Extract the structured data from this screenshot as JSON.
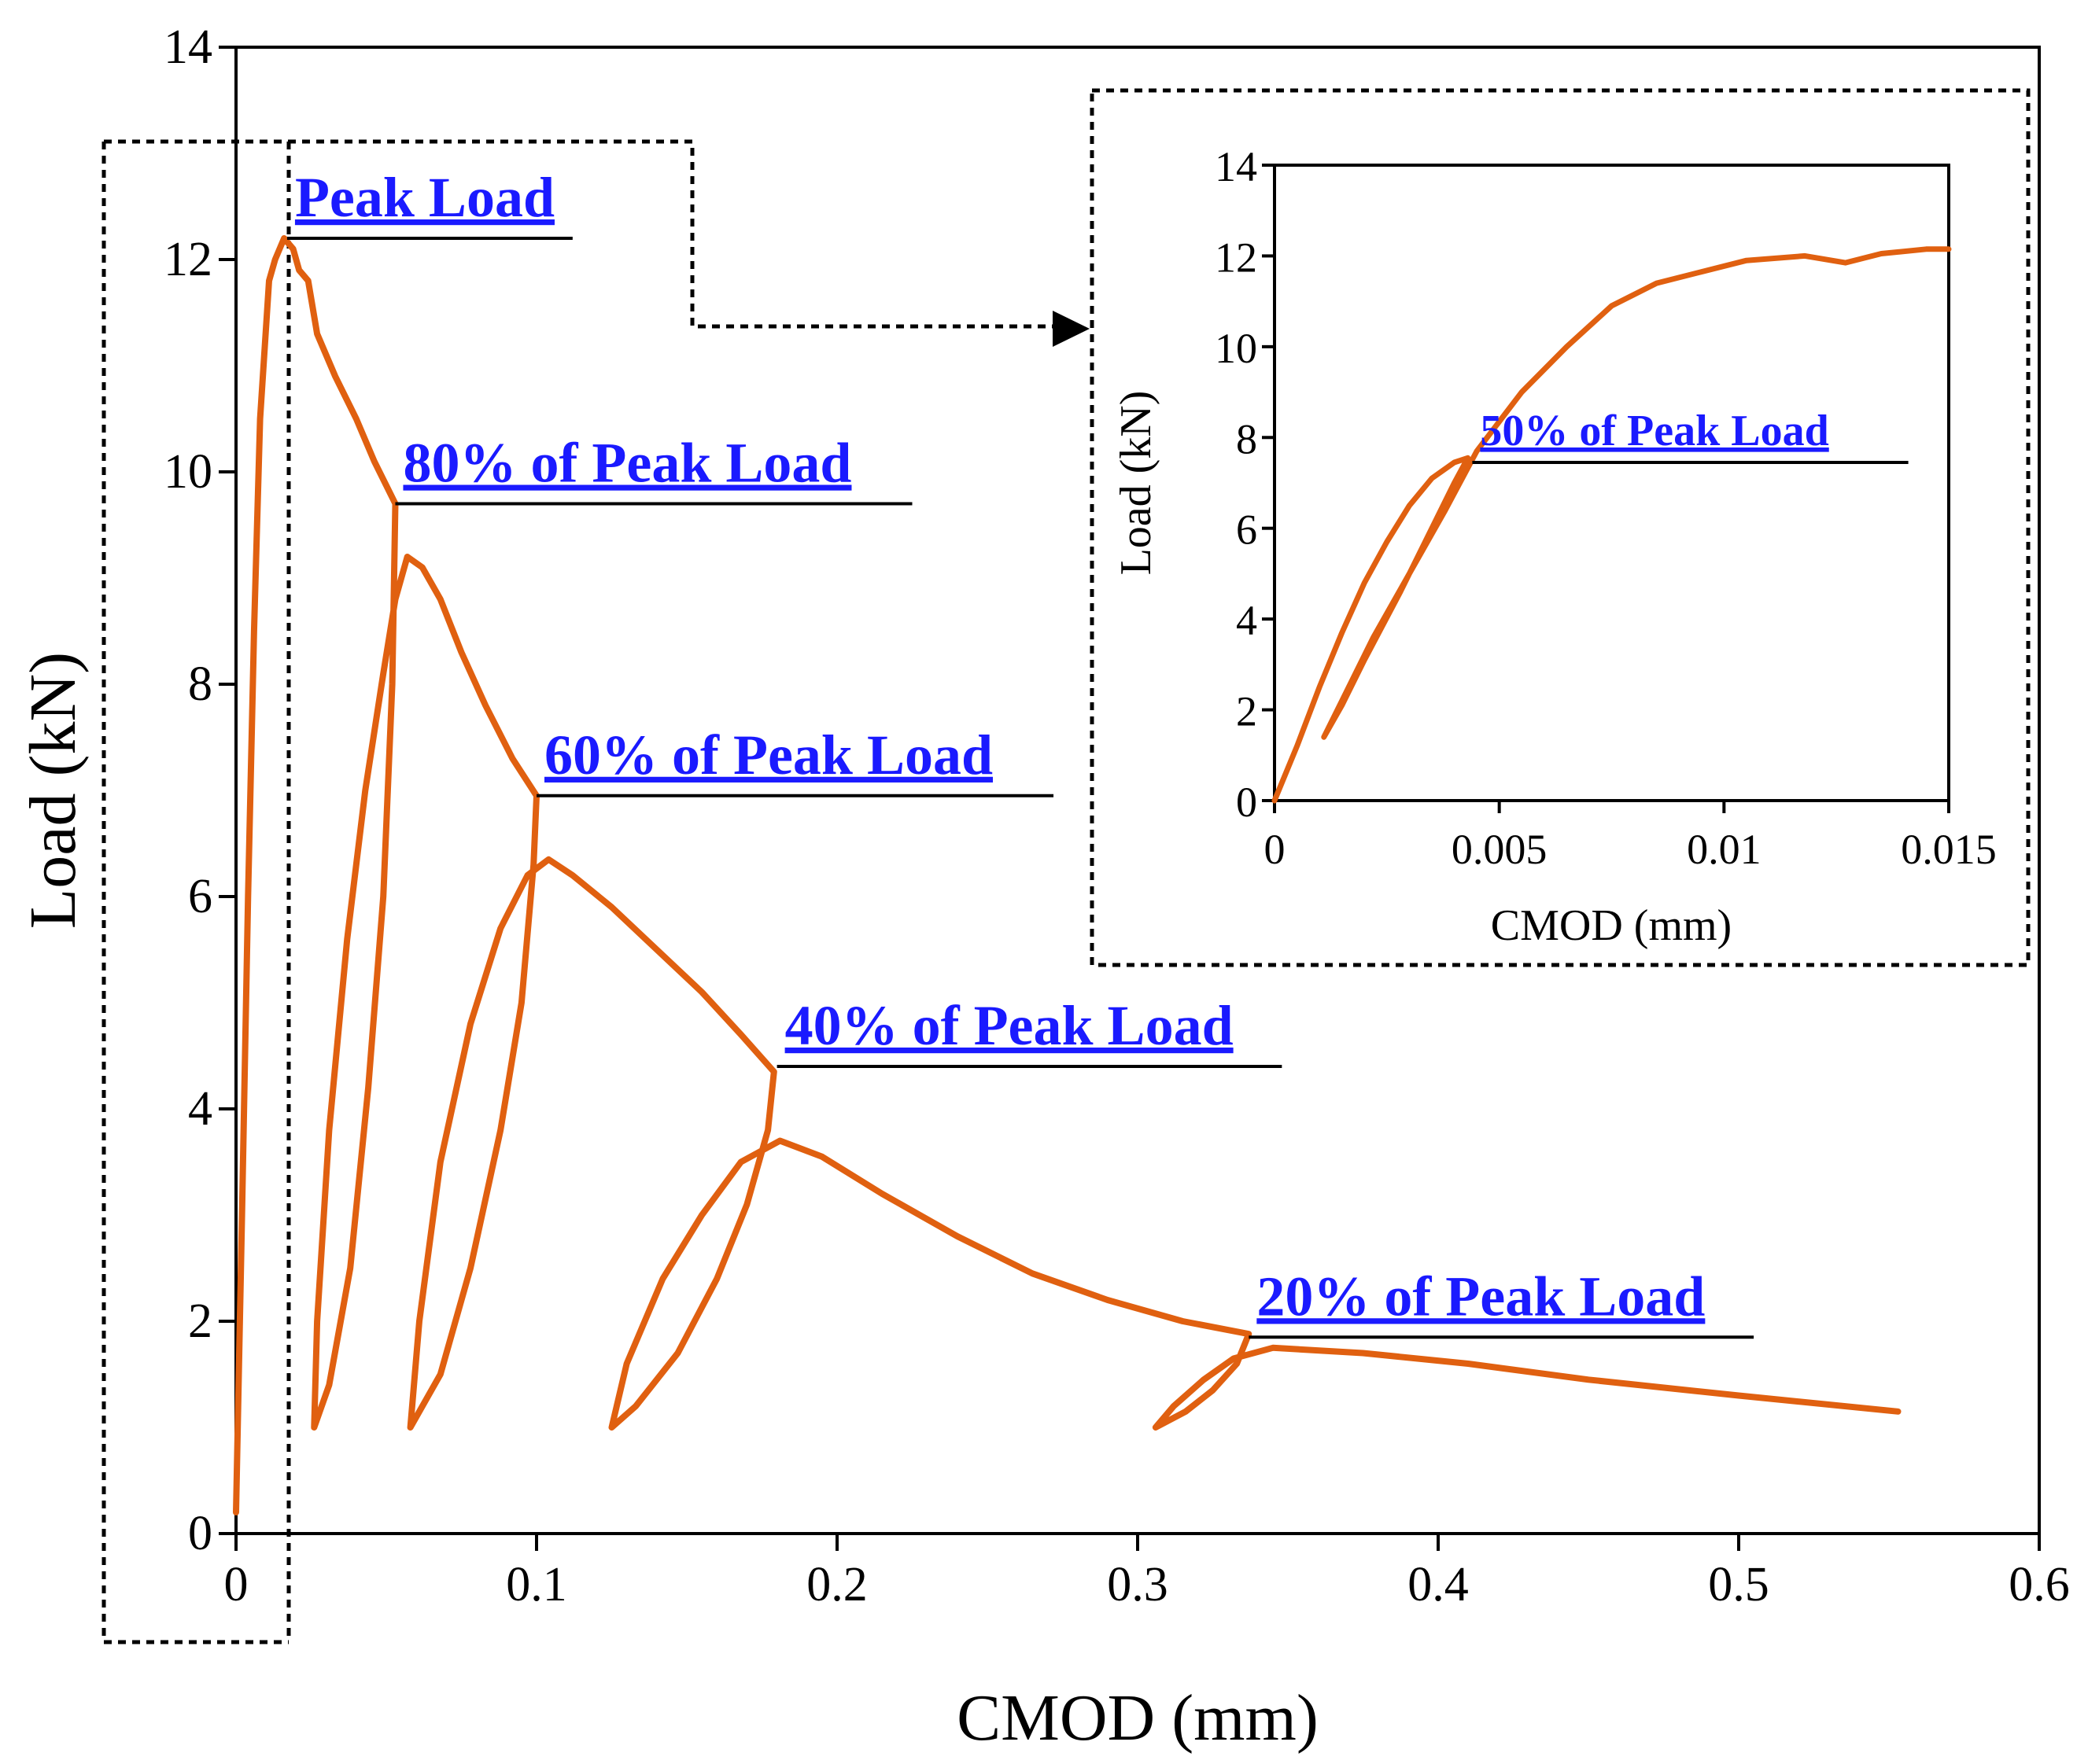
{
  "colors": {
    "curve": "#E06010",
    "annotation": "#1a1aff",
    "axis": "#000000"
  },
  "chart_data": [
    {
      "type": "line",
      "xlabel": "CMOD (mm)",
      "ylabel": "Load (kN)",
      "xlim": [
        0,
        0.6
      ],
      "ylim": [
        0,
        14
      ],
      "x_ticks": [
        "0",
        "0.1",
        "0.2",
        "0.3",
        "0.4",
        "0.5",
        "0.6"
      ],
      "y_ticks": [
        "0",
        "2",
        "4",
        "6",
        "8",
        "10",
        "12",
        "14"
      ],
      "grid": false,
      "series": [
        {
          "points": [
            [
              0.0,
              0.2
            ],
            [
              0.002,
              3.0
            ],
            [
              0.004,
              6.0
            ],
            [
              0.006,
              8.5
            ],
            [
              0.008,
              10.5
            ],
            [
              0.011,
              11.8
            ],
            [
              0.013,
              12.0
            ],
            [
              0.016,
              12.2
            ],
            [
              0.019,
              12.1
            ],
            [
              0.021,
              11.9
            ],
            [
              0.024,
              11.8
            ],
            [
              0.027,
              11.3
            ],
            [
              0.033,
              10.9
            ],
            [
              0.04,
              10.5
            ],
            [
              0.046,
              10.1
            ],
            [
              0.053,
              9.7
            ],
            [
              0.052,
              8.0
            ],
            [
              0.049,
              6.0
            ],
            [
              0.044,
              4.2
            ],
            [
              0.038,
              2.5
            ],
            [
              0.031,
              1.4
            ],
            [
              0.026,
              1.0
            ],
            [
              0.027,
              2.0
            ],
            [
              0.031,
              3.8
            ],
            [
              0.037,
              5.6
            ],
            [
              0.043,
              7.0
            ],
            [
              0.049,
              8.1
            ],
            [
              0.053,
              8.8
            ],
            [
              0.057,
              9.2
            ],
            [
              0.062,
              9.1
            ],
            [
              0.068,
              8.8
            ],
            [
              0.075,
              8.3
            ],
            [
              0.083,
              7.8
            ],
            [
              0.092,
              7.3
            ],
            [
              0.1,
              6.95
            ],
            [
              0.099,
              6.3
            ],
            [
              0.095,
              5.0
            ],
            [
              0.088,
              3.8
            ],
            [
              0.078,
              2.5
            ],
            [
              0.068,
              1.5
            ],
            [
              0.058,
              1.0
            ],
            [
              0.061,
              2.0
            ],
            [
              0.068,
              3.5
            ],
            [
              0.078,
              4.8
            ],
            [
              0.088,
              5.7
            ],
            [
              0.097,
              6.2
            ],
            [
              0.104,
              6.35
            ],
            [
              0.112,
              6.2
            ],
            [
              0.125,
              5.9
            ],
            [
              0.14,
              5.5
            ],
            [
              0.155,
              5.1
            ],
            [
              0.168,
              4.7
            ],
            [
              0.179,
              4.35
            ],
            [
              0.177,
              3.8
            ],
            [
              0.17,
              3.1
            ],
            [
              0.16,
              2.4
            ],
            [
              0.147,
              1.7
            ],
            [
              0.133,
              1.2
            ],
            [
              0.125,
              1.0
            ],
            [
              0.13,
              1.6
            ],
            [
              0.142,
              2.4
            ],
            [
              0.155,
              3.0
            ],
            [
              0.168,
              3.5
            ],
            [
              0.181,
              3.7
            ],
            [
              0.195,
              3.55
            ],
            [
              0.215,
              3.2
            ],
            [
              0.24,
              2.8
            ],
            [
              0.265,
              2.45
            ],
            [
              0.29,
              2.2
            ],
            [
              0.315,
              2.0
            ],
            [
              0.337,
              1.88
            ],
            [
              0.333,
              1.6
            ],
            [
              0.325,
              1.35
            ],
            [
              0.316,
              1.15
            ],
            [
              0.306,
              1.0
            ],
            [
              0.312,
              1.2
            ],
            [
              0.322,
              1.45
            ],
            [
              0.332,
              1.65
            ],
            [
              0.345,
              1.75
            ],
            [
              0.375,
              1.7
            ],
            [
              0.41,
              1.6
            ],
            [
              0.45,
              1.45
            ],
            [
              0.5,
              1.3
            ],
            [
              0.553,
              1.15
            ]
          ]
        }
      ],
      "annotations": [
        {
          "text": "Peak Load",
          "x": 0.017,
          "y": 12.2,
          "line_end_x": 0.112
        },
        {
          "text": "80% of Peak Load",
          "x": 0.053,
          "y": 9.7,
          "line_end_x": 0.225
        },
        {
          "text": "60% of Peak Load",
          "x": 0.1,
          "y": 6.95,
          "line_end_x": 0.272
        },
        {
          "text": "40% of Peak Load",
          "x": 0.18,
          "y": 4.4,
          "line_end_x": 0.348
        },
        {
          "text": "20% of Peak Load",
          "x": 0.337,
          "y": 1.85,
          "line_end_x": 0.505
        }
      ]
    },
    {
      "type": "line",
      "xlabel": "CMOD (mm)",
      "ylabel": "Load (kN)",
      "xlim": [
        0,
        0.015
      ],
      "ylim": [
        0,
        14
      ],
      "x_ticks": [
        "0",
        "0.005",
        "0.01",
        "0.015"
      ],
      "y_ticks": [
        "0",
        "2",
        "4",
        "6",
        "8",
        "10",
        "12",
        "14"
      ],
      "grid": false,
      "series": [
        {
          "points": [
            [
              0.0,
              0.0
            ],
            [
              0.0005,
              1.2
            ],
            [
              0.001,
              2.5
            ],
            [
              0.0015,
              3.7
            ],
            [
              0.002,
              4.8
            ],
            [
              0.0025,
              5.7
            ],
            [
              0.003,
              6.5
            ],
            [
              0.0035,
              7.1
            ],
            [
              0.004,
              7.45
            ],
            [
              0.0043,
              7.55
            ],
            [
              0.004,
              7.0
            ],
            [
              0.0035,
              6.0
            ],
            [
              0.0028,
              4.6
            ],
            [
              0.002,
              3.1
            ],
            [
              0.0015,
              2.1
            ],
            [
              0.0011,
              1.4
            ],
            [
              0.0015,
              2.2
            ],
            [
              0.0022,
              3.6
            ],
            [
              0.003,
              5.0
            ],
            [
              0.0038,
              6.4
            ],
            [
              0.0045,
              7.7
            ],
            [
              0.0055,
              9.0
            ],
            [
              0.0065,
              10.0
            ],
            [
              0.0075,
              10.9
            ],
            [
              0.0085,
              11.4
            ],
            [
              0.0095,
              11.65
            ],
            [
              0.0105,
              11.9
            ],
            [
              0.0118,
              12.0
            ],
            [
              0.0127,
              11.85
            ],
            [
              0.0135,
              12.05
            ],
            [
              0.0145,
              12.15
            ],
            [
              0.015,
              12.15
            ]
          ]
        }
      ],
      "annotations": [
        {
          "text": "50% of Peak Load",
          "x": 0.0044,
          "y": 7.45,
          "line_end_x": 0.0141
        }
      ]
    }
  ]
}
